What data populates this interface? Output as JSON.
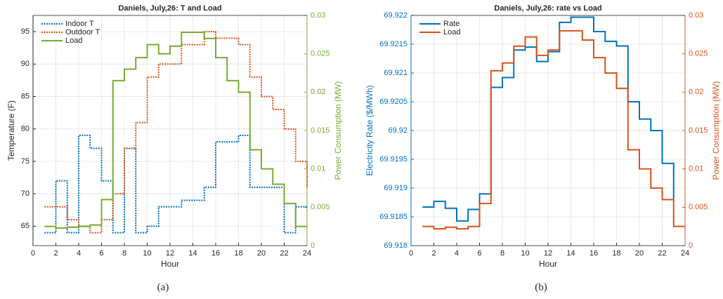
{
  "chart_data": [
    {
      "type": "line",
      "drawstyle": "steps-post",
      "title": "Daniels, July,26: T and Load",
      "xlabel": "Hour",
      "ylabel": "Temperature (F)",
      "y2label": "Power Consumption (MW)",
      "ylabel_color": "#262626",
      "y2label_color": "#77AC30",
      "caption": "(a)",
      "legend": "upper left",
      "x": [
        1,
        2,
        3,
        4,
        5,
        6,
        7,
        8,
        9,
        10,
        11,
        12,
        13,
        14,
        15,
        16,
        17,
        18,
        19,
        20,
        21,
        22,
        23,
        24
      ],
      "series": [
        {
          "name": "Indoor T",
          "color": "#0072BD",
          "dash": "dotted",
          "axis": "y",
          "values": [
            64,
            72,
            64,
            79,
            77,
            72,
            64,
            77,
            64,
            65,
            68,
            68,
            69,
            69,
            71,
            78,
            78,
            79,
            71,
            71,
            71,
            64,
            68,
            68
          ]
        },
        {
          "name": "Outdoor T",
          "color": "#D95319",
          "dash": "dotted",
          "axis": "y",
          "values": [
            68,
            68,
            66,
            65,
            64,
            66,
            70,
            77,
            81,
            88,
            90,
            90,
            93,
            93,
            95,
            94,
            94,
            93,
            88,
            85,
            83,
            80,
            75,
            71
          ]
        },
        {
          "name": "Load",
          "color": "#77AC30",
          "dash": "solid",
          "axis": "y2",
          "values": [
            0.0025,
            0.0023,
            0.0024,
            0.0025,
            0.0027,
            0.006,
            0.0215,
            0.023,
            0.0245,
            0.0262,
            0.025,
            0.026,
            0.0278,
            0.0278,
            0.027,
            0.0245,
            0.0215,
            0.02,
            0.0125,
            0.01,
            0.008,
            0.0055,
            0.0025,
            0.0025
          ]
        }
      ],
      "xlim": [
        0,
        24
      ],
      "xticks": [
        0,
        2,
        4,
        6,
        8,
        10,
        12,
        14,
        16,
        18,
        20,
        22,
        24
      ],
      "ylim": [
        62,
        97.5
      ],
      "yticks": [
        65,
        70,
        75,
        80,
        85,
        90,
        95
      ],
      "y2lim": [
        0,
        0.03
      ],
      "y2ticks": [
        0,
        0.005,
        0.01,
        0.015,
        0.02,
        0.025,
        0.03
      ],
      "grid": true
    },
    {
      "type": "line",
      "drawstyle": "steps-post",
      "title": "Daniels, July,26: rate vs Load",
      "xlabel": "Hour",
      "ylabel": "Electricity Rate ($/MWh)",
      "y2label": "Power Consumption (MW)",
      "ylabel_color": "#0072BD",
      "y2label_color": "#D95319",
      "caption": "(b)",
      "legend": "upper left",
      "x": [
        1,
        2,
        3,
        4,
        5,
        6,
        7,
        8,
        9,
        10,
        11,
        12,
        13,
        14,
        15,
        16,
        17,
        18,
        19,
        20,
        21,
        22,
        23,
        24
      ],
      "series": [
        {
          "name": "Rate",
          "color": "#0072BD",
          "dash": "solid",
          "axis": "y",
          "values": [
            69.91867,
            69.91877,
            69.91865,
            69.91843,
            69.91863,
            69.9189,
            69.92075,
            69.92092,
            69.9214,
            69.92145,
            69.9212,
            69.92137,
            69.92188,
            69.92197,
            69.92197,
            69.92172,
            69.92155,
            69.92147,
            69.9205,
            69.9202,
            69.92,
            69.91943,
            69.9188,
            null
          ]
        },
        {
          "name": "Load",
          "color": "#D95319",
          "dash": "solid",
          "axis": "y2",
          "values": [
            0.0025,
            0.0022,
            0.0024,
            0.0022,
            0.0025,
            0.0055,
            0.0228,
            0.0238,
            0.026,
            0.0272,
            0.0248,
            0.0255,
            0.028,
            0.028,
            0.0268,
            0.0245,
            0.0225,
            0.0205,
            0.0125,
            0.01,
            0.0075,
            0.006,
            0.0025,
            0.0025
          ]
        }
      ],
      "xlim": [
        0,
        24
      ],
      "xticks": [
        0,
        2,
        4,
        6,
        8,
        10,
        12,
        14,
        16,
        18,
        20,
        22,
        24
      ],
      "ylim": [
        69.918,
        69.922
      ],
      "yticks": [
        69.918,
        69.9185,
        69.919,
        69.9195,
        69.92,
        69.9205,
        69.921,
        69.9215,
        69.922
      ],
      "y2lim": [
        0,
        0.03
      ],
      "y2ticks": [
        0,
        0.005,
        0.01,
        0.015,
        0.02,
        0.025,
        0.03
      ],
      "grid": true
    }
  ]
}
